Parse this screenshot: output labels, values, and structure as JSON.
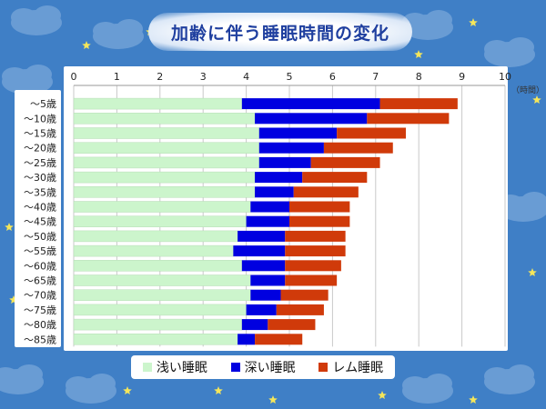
{
  "title": "加齢に伴う睡眠時間の変化",
  "chart_data": {
    "type": "bar",
    "orientation": "horizontal",
    "stacked": true,
    "categories": [
      "～5歳",
      "～10歳",
      "～15歳",
      "～20歳",
      "～25歳",
      "～30歳",
      "～35歳",
      "～40歳",
      "～45歳",
      "～50歳",
      "～55歳",
      "～60歳",
      "～65歳",
      "～70歳",
      "～75歳",
      "～80歳",
      "～85歳"
    ],
    "series": [
      {
        "name": "浅い睡眠",
        "color": "#ccf5cc",
        "values": [
          3.9,
          4.2,
          4.3,
          4.3,
          4.3,
          4.2,
          4.2,
          4.1,
          4.0,
          3.8,
          3.7,
          3.9,
          4.1,
          4.1,
          4.0,
          3.9,
          3.8
        ]
      },
      {
        "name": "深い睡眠",
        "color": "#0000e0",
        "values": [
          3.2,
          2.6,
          1.8,
          1.5,
          1.2,
          1.1,
          0.9,
          0.9,
          1.0,
          1.1,
          1.2,
          1.0,
          0.8,
          0.7,
          0.7,
          0.6,
          0.4
        ]
      },
      {
        "name": "レム睡眠",
        "color": "#d03a0a",
        "values": [
          1.8,
          1.9,
          1.6,
          1.6,
          1.6,
          1.5,
          1.5,
          1.4,
          1.4,
          1.4,
          1.4,
          1.3,
          1.2,
          1.1,
          1.1,
          1.1,
          1.1
        ]
      }
    ],
    "xlim": [
      0,
      10
    ],
    "xticks": [
      0,
      1,
      2,
      3,
      4,
      5,
      6,
      7,
      8,
      9,
      10
    ],
    "xlabel": "（時間）",
    "grid": true,
    "legend": "bottom"
  }
}
